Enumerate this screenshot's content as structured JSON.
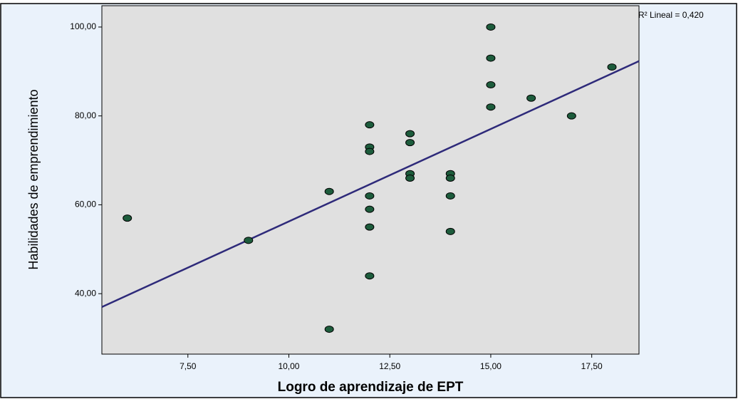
{
  "chart_data": {
    "type": "scatter",
    "x_label": "Logro de aprendizaje de EPT",
    "y_label": "Habilidades de emprendimiento",
    "annotation": "R² Lineal = 0,420",
    "x": [
      6,
      9,
      11,
      11,
      12,
      12,
      12,
      12,
      12,
      12,
      12,
      13,
      13,
      13,
      13,
      14,
      14,
      14,
      14,
      15,
      15,
      15,
      15,
      16,
      17,
      18
    ],
    "values": [
      57,
      52,
      63,
      32,
      78,
      73,
      72,
      62,
      59,
      55,
      44,
      76,
      74,
      67,
      66,
      67,
      66,
      62,
      54,
      100,
      93,
      87,
      82,
      84,
      80,
      91
    ],
    "color": "#1d5c3c",
    "fit": {
      "slope": 4.16,
      "intercept": 14.66,
      "color": "#2e2a7a"
    },
    "xlim": [
      5.37,
      18.67
    ],
    "ylim": [
      26.4,
      104.8
    ],
    "xticks": [
      {
        "value": 7.5,
        "label": "7,50"
      },
      {
        "value": 10,
        "label": "10,00"
      },
      {
        "value": 12.5,
        "label": "12,50"
      },
      {
        "value": 15,
        "label": "15,00"
      },
      {
        "value": 17.5,
        "label": "17,50"
      }
    ],
    "yticks": [
      {
        "value": 40,
        "label": "40,00"
      },
      {
        "value": 60,
        "label": "60,00"
      },
      {
        "value": 80,
        "label": "80,00"
      },
      {
        "value": 100,
        "label": "100,00"
      }
    ]
  }
}
